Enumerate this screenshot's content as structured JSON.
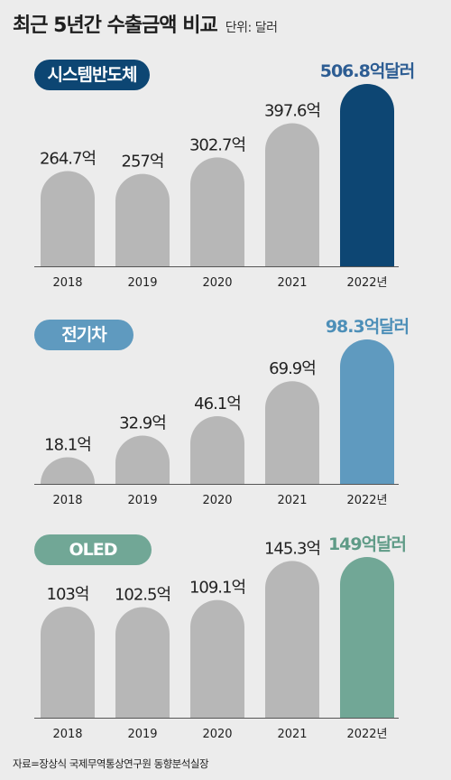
{
  "header": {
    "title": "최근 5년간 수출금액 비교",
    "unit": "단위: 달러"
  },
  "source": "자료=장상식 국제무역통상연구원 동향분석실장",
  "colors": {
    "grey_bar": "#b7b7b7",
    "axis": "#555555"
  },
  "chart_data": [
    {
      "type": "bar",
      "title": "시스템반도체",
      "categories": [
        "2018",
        "2019",
        "2020",
        "2021",
        "2022년"
      ],
      "values": [
        264.7,
        257,
        302.7,
        397.6,
        506.8
      ],
      "labels": [
        "264.7억",
        "257억",
        "302.7억",
        "397.6억",
        "506.8억달러"
      ],
      "highlight_color": "#0d4673",
      "highlight_label_color": "#2d5d93",
      "ylim": [
        0,
        506.8
      ],
      "grid": false,
      "legend": "none"
    },
    {
      "type": "bar",
      "title": "전기차",
      "categories": [
        "2018",
        "2019",
        "2020",
        "2021",
        "2022년"
      ],
      "values": [
        18.1,
        32.9,
        46.1,
        69.9,
        98.3
      ],
      "labels": [
        "18.1억",
        "32.9억",
        "46.1억",
        "69.9억",
        "98.3억달러"
      ],
      "highlight_color": "#5f9abf",
      "highlight_label_color": "#4d8fb8",
      "ylim": [
        0,
        98.3
      ],
      "grid": false,
      "legend": "none"
    },
    {
      "type": "bar",
      "title": "OLED",
      "categories": [
        "2018",
        "2019",
        "2020",
        "2021",
        "2022년"
      ],
      "values": [
        103,
        102.5,
        109.1,
        145.3,
        149
      ],
      "labels": [
        "103억",
        "102.5억",
        "109.1억",
        "145.3억",
        "149억달러"
      ],
      "highlight_color": "#71a796",
      "highlight_label_color": "#5f9b87",
      "ylim": [
        0,
        149
      ],
      "grid": false,
      "legend": "none"
    }
  ]
}
